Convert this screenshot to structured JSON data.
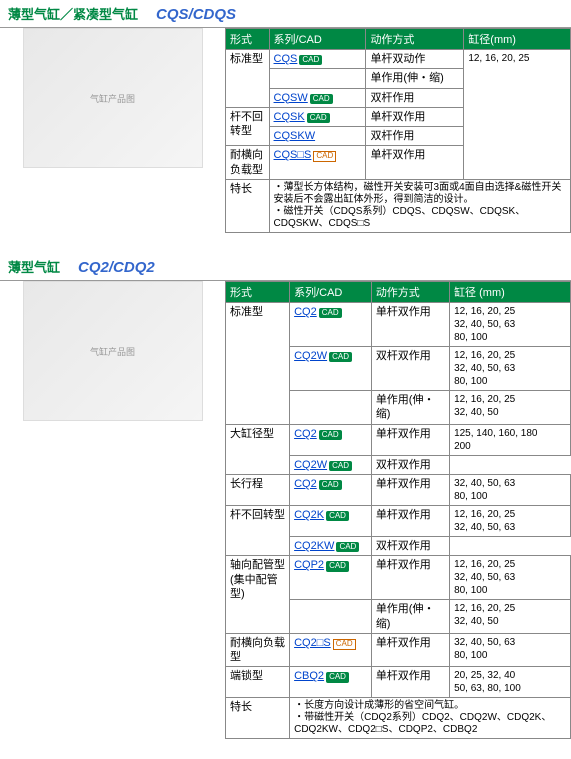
{
  "sections": [
    {
      "title": "薄型气缸／紧凑型气缸",
      "code": "CQS/CDQS",
      "headers": [
        "形式",
        "系列/CAD",
        "动作方式",
        "缸径(mm)"
      ],
      "rows": [
        {
          "form": "标准型",
          "formRowspan": 3,
          "series": "CQS",
          "cad": true,
          "action": "单杆双动作",
          "bore": "12, 16, 20, 25",
          "boreRowspan": 6
        },
        {
          "series": "",
          "cad": false,
          "action": "单作用(伸・缩)"
        },
        {
          "series": "CQSW",
          "cad": true,
          "action": "双杆作用"
        },
        {
          "form": "杆不回转型",
          "formRowspan": 2,
          "series": "CQSK",
          "cad": true,
          "action": "单杆双作用"
        },
        {
          "series": "CQSKW",
          "cad": false,
          "action": "双杆作用"
        },
        {
          "form": "耐横向负载型",
          "formRowspan": 1,
          "series": "CQS□S",
          "cad": true,
          "cadOutline": true,
          "action": "单杆双作用"
        }
      ],
      "featLabel": "特长",
      "features": "・薄型长方体结构，磁性开关安装可3面或4面自由选择&磁性开关安装后不会露出缸体外形，得到简洁的设计。\n・磁性开关（CDQS系列）CDQS、CDQSW、CDQSK、CDQSKW、CDQS□S"
    },
    {
      "title": "薄型气缸",
      "code": "CQ2/CDQ2",
      "headers": [
        "形式",
        "系列/CAD",
        "动作方式",
        "缸径 (mm)"
      ],
      "rows": [
        {
          "form": "标准型",
          "formRowspan": 3,
          "series": "CQ2",
          "cad": true,
          "action": "单杆双作用",
          "bore": "12, 16, 20, 25, 32, 40, 50, 63, 80, 100"
        },
        {
          "series": "CQ2W",
          "cad": true,
          "action": "双杆双作用",
          "bore": "12, 16, 20, 25, 32, 40, 50, 63, 80, 100"
        },
        {
          "series": "",
          "cad": false,
          "action": "单作用(伸・缩)",
          "bore": "12, 16, 20, 25, 32, 40, 50"
        },
        {
          "form": "大缸径型",
          "formRowspan": 2,
          "series": "CQ2",
          "cad": true,
          "action": "单杆双作用",
          "bore": "125, 140, 160, 180, 200"
        },
        {
          "series": "CQ2W",
          "cad": true,
          "action": "双杆双作用"
        },
        {
          "form": "长行程",
          "formRowspan": 1,
          "series": "CQ2",
          "cad": true,
          "action": "单杆双作用",
          "bore": "32, 40, 50, 63, 80, 100"
        },
        {
          "form": "杆不回转型",
          "formRowspan": 2,
          "series": "CQ2K",
          "cad": true,
          "action": "单杆双作用",
          "bore": "12, 16, 20, 25, 32, 40, 50, 63"
        },
        {
          "series": "CQ2KW",
          "cad": true,
          "action": "双杆双作用"
        },
        {
          "form": "轴向配管型 (集中配管型)",
          "formRowspan": 2,
          "series": "CQP2",
          "cad": true,
          "action": "单杆双作用",
          "bore": "12, 16, 20, 25, 32, 40, 50, 63, 80, 100"
        },
        {
          "series": "",
          "cad": false,
          "action": "单作用(伸・缩)",
          "bore": "12, 16, 20, 25, 32, 40, 50"
        },
        {
          "form": "耐横向负载型",
          "formRowspan": 1,
          "series": "CQ2□S",
          "cad": true,
          "cadOutline": true,
          "action": "单杆双作用",
          "bore": "32, 40, 50, 63, 80, 100"
        },
        {
          "form": "端锁型",
          "formRowspan": 1,
          "series": "CBQ2",
          "cad": true,
          "action": "单杆双作用",
          "bore": "20, 25, 32, 40, 50, 63, 80, 100"
        }
      ],
      "featLabel": "特长",
      "features": "・长度方向设计成薄形的省空间气缸。\n・带磁性开关（CDQ2系列）CDQ2、CDQ2W、CDQ2K、CDQ2KW、CDQ2□S、CDQP2、CDBQ2"
    }
  ],
  "imgPlaceholder": "气缸产品图"
}
